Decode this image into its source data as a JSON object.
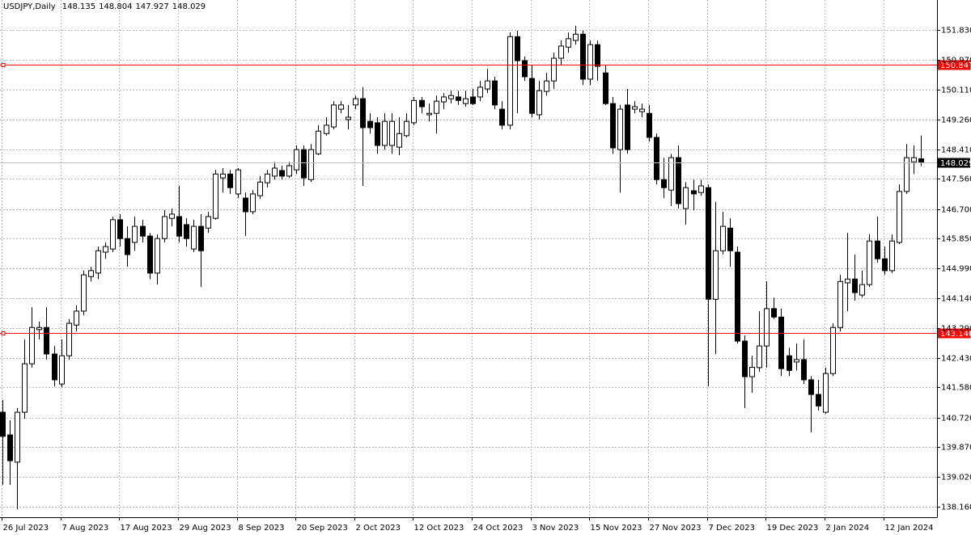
{
  "chart_data": {
    "type": "candlestick",
    "symbol": "USDJPY,Daily",
    "categories": [
      "26 Jul 2023",
      null,
      null,
      null,
      null,
      null,
      null,
      null,
      "7 Aug 2023",
      null,
      null,
      null,
      null,
      null,
      null,
      null,
      "17 Aug 2023",
      null,
      null,
      null,
      null,
      null,
      null,
      null,
      "29 Aug 2023",
      null,
      null,
      null,
      null,
      null,
      null,
      null,
      "8 Sep 2023",
      null,
      null,
      null,
      null,
      null,
      null,
      null,
      "20 Sep 2023",
      null,
      null,
      null,
      null,
      null,
      null,
      null,
      "2 Oct 2023",
      null,
      null,
      null,
      null,
      null,
      null,
      null,
      "12 Oct 2023",
      null,
      null,
      null,
      null,
      null,
      null,
      null,
      "24 Oct 2023",
      null,
      null,
      null,
      null,
      null,
      null,
      null,
      "3 Nov 2023",
      null,
      null,
      null,
      null,
      null,
      null,
      null,
      "15 Nov 2023",
      null,
      null,
      null,
      null,
      null,
      null,
      null,
      "27 Nov 2023",
      null,
      null,
      null,
      null,
      null,
      null,
      null,
      "7 Dec 2023",
      null,
      null,
      null,
      null,
      null,
      null,
      null,
      "19 Dec 2023",
      null,
      null,
      null,
      null,
      null,
      null,
      null,
      "2 Jan 2024",
      null,
      null,
      null,
      null,
      null,
      null,
      null,
      "12 Jan 2024",
      null,
      null,
      null,
      null,
      null
    ],
    "open": [
      140.87,
      140.22,
      139.44,
      140.87,
      142.26,
      143.24,
      143.3,
      142.54,
      141.68,
      142.49,
      143.37,
      143.77,
      144.76,
      144.86,
      145.46,
      145.55,
      146.39,
      145.85,
      145.74,
      146.2,
      145.92,
      144.86,
      145.85,
      146.43,
      146.48,
      146.25,
      145.55,
      146.2,
      146.15,
      146.43,
      147.59,
      147.7,
      147.13,
      147.01,
      146.62,
      147.08,
      147.45,
      147.64,
      147.8,
      147.64,
      147.82,
      148.4,
      147.54,
      148.28,
      148.86,
      149.05,
      149.56,
      149.26,
      149.68,
      149.86,
      149.21,
      149.17,
      148.52,
      148.52,
      148.47,
      148.8,
      149.17,
      149.81,
      149.4,
      149.44,
      149.77,
      149.86,
      149.91,
      149.72,
      149.91,
      149.91,
      150.14,
      150.37,
      149.56,
      149.1,
      151.64,
      150.95,
      150.44,
      149.4,
      150.07,
      150.37,
      151.02,
      151.34,
      151.53,
      151.71,
      150.42,
      151.41,
      150.6,
      149.72,
      148.4,
      149.68,
      149.56,
      149.49,
      149.44,
      148.75,
      147.54,
      147.24,
      148.17,
      146.71,
      147.22,
      147.17,
      147.31,
      144.11,
      145.5,
      146.15,
      145.46,
      142.91,
      141.89,
      142.15,
      142.77,
      143.84,
      143.6,
      142.49,
      142.31,
      142.38,
      141.8,
      141.38,
      140.87,
      141.98,
      143.3,
      144.58,
      144.69,
      144.23,
      144.53,
      145.78,
      145.27,
      144.93,
      145.74,
      147.2,
      148.05,
      148.135
    ],
    "high": [
      141.22,
      140.64,
      140.99,
      142.96,
      143.88,
      143.47,
      143.88,
      142.77,
      142.96,
      143.54,
      143.93,
      144.93,
      145.04,
      145.62,
      145.74,
      146.48,
      146.55,
      146.2,
      146.48,
      146.39,
      146.01,
      145.97,
      146.66,
      146.71,
      147.36,
      146.43,
      146.39,
      146.55,
      146.62,
      147.82,
      147.87,
      147.82,
      147.87,
      147.17,
      147.24,
      147.64,
      147.82,
      148.05,
      147.94,
      148.05,
      148.52,
      148.52,
      148.56,
      149.1,
      149.33,
      149.79,
      149.79,
      149.68,
      149.95,
      150.19,
      149.44,
      149.33,
      149.44,
      149.44,
      149.33,
      149.44,
      149.91,
      149.91,
      149.72,
      149.95,
      150.02,
      150.09,
      150.09,
      150.09,
      150.14,
      150.37,
      150.72,
      150.49,
      149.79,
      151.76,
      151.81,
      151.07,
      150.83,
      150.37,
      150.6,
      151.18,
      151.53,
      151.76,
      151.95,
      151.81,
      151.53,
      151.53,
      150.83,
      149.91,
      149.68,
      150.14,
      149.79,
      149.72,
      149.68,
      148.86,
      148.17,
      148.28,
      148.52,
      147.47,
      147.54,
      147.54,
      147.4,
      146.9,
      146.62,
      146.43,
      145.62,
      143.07,
      142.49,
      143.77,
      144.62,
      144.16,
      143.84,
      142.72,
      142.84,
      142.96,
      141.91,
      141.8,
      142.15,
      143.42,
      144.81,
      146.01,
      145.39,
      144.93,
      145.97,
      146.48,
      145.62,
      145.97,
      147.4,
      148.56,
      148.52,
      148.804
    ],
    "low": [
      138.79,
      138.79,
      138.09,
      140.69,
      142.15,
      142.96,
      142.38,
      141.61,
      141.59,
      142.38,
      143.19,
      143.65,
      144.62,
      144.69,
      145.27,
      145.46,
      145.62,
      145.04,
      145.5,
      145.74,
      144.69,
      144.53,
      145.74,
      146.2,
      145.74,
      145.62,
      145.46,
      144.46,
      146.01,
      146.39,
      147.17,
      147.13,
      147.01,
      145.92,
      146.55,
      146.99,
      147.31,
      147.54,
      147.54,
      147.59,
      147.7,
      147.36,
      147.47,
      148.24,
      148.8,
      148.98,
      149.44,
      148.98,
      149.56,
      147.36,
      148.86,
      148.28,
      148.4,
      148.28,
      148.24,
      148.75,
      149.1,
      149.44,
      149.21,
      148.86,
      149.56,
      149.72,
      149.68,
      149.63,
      149.68,
      149.79,
      150.02,
      149.56,
      148.98,
      148.98,
      149.44,
      150.37,
      149.33,
      149.26,
      149.95,
      150.14,
      150.83,
      151.18,
      151.41,
      150.25,
      150.25,
      150.37,
      149.68,
      148.28,
      147.17,
      148.28,
      149.44,
      149.33,
      148.63,
      147.4,
      147.01,
      146.78,
      146.71,
      146.25,
      146.66,
      147.08,
      141.61,
      142.54,
      145.39,
      145.04,
      142.84,
      140.99,
      141.43,
      142.03,
      142.15,
      143.54,
      141.91,
      141.91,
      142.07,
      141.68,
      140.29,
      140.92,
      140.82,
      141.91,
      143.19,
      143.77,
      144.07,
      144.16,
      144.46,
      145.16,
      144.81,
      144.86,
      145.69,
      147.13,
      147.7,
      147.927
    ],
    "close": [
      140.18,
      139.48,
      140.87,
      142.26,
      143.3,
      143.3,
      142.54,
      141.8,
      142.49,
      143.42,
      143.77,
      144.81,
      144.93,
      145.5,
      145.62,
      146.39,
      145.85,
      145.39,
      146.2,
      145.92,
      144.86,
      145.85,
      146.48,
      146.55,
      145.92,
      145.85,
      146.2,
      145.5,
      146.48,
      147.7,
      147.7,
      147.31,
      147.82,
      146.62,
      147.13,
      147.47,
      147.7,
      147.87,
      147.64,
      147.94,
      148.4,
      147.59,
      148.4,
      148.93,
      149.1,
      149.68,
      149.68,
      149.33,
      149.86,
      149.03,
      149.03,
      148.52,
      149.21,
      149.21,
      148.86,
      149.21,
      149.81,
      149.63,
      149.44,
      149.79,
      149.91,
      149.95,
      149.81,
      149.86,
      149.72,
      150.19,
      150.37,
      149.68,
      149.1,
      151.64,
      150.95,
      150.49,
      149.44,
      150.09,
      150.37,
      151.02,
      151.37,
      151.58,
      151.71,
      150.42,
      151.41,
      150.79,
      149.72,
      148.45,
      149.56,
      148.4,
      149.63,
      149.56,
      148.75,
      147.54,
      147.31,
      148.17,
      146.85,
      147.31,
      147.13,
      147.36,
      144.11,
      145.5,
      146.2,
      145.5,
      142.91,
      141.89,
      142.16,
      142.77,
      143.84,
      143.6,
      142.12,
      142.07,
      142.38,
      141.8,
      141.38,
      141.05,
      141.98,
      143.3,
      144.62,
      144.69,
      144.3,
      144.53,
      145.78,
      145.27,
      144.93,
      145.78,
      147.2,
      148.17,
      148.17,
      148.029
    ],
    "ylim": [
      137.86,
      152.69
    ],
    "yticks": [
      {
        "value": 151.83,
        "label": "151.830"
      },
      {
        "value": 150.97,
        "label": "150.970"
      },
      {
        "value": 150.11,
        "label": "150.110"
      },
      {
        "value": 149.26,
        "label": "149.260"
      },
      {
        "value": 148.41,
        "label": "148.410"
      },
      {
        "value": 147.56,
        "label": "147.560"
      },
      {
        "value": 146.7,
        "label": "146.700"
      },
      {
        "value": 145.85,
        "label": "145.850"
      },
      {
        "value": 144.99,
        "label": "144.990"
      },
      {
        "value": 144.14,
        "label": "144.140"
      },
      {
        "value": 143.29,
        "label": "143.290"
      },
      {
        "value": 142.43,
        "label": "142.430"
      },
      {
        "value": 141.58,
        "label": "141.580"
      },
      {
        "value": 140.72,
        "label": "140.720"
      },
      {
        "value": 139.87,
        "label": "139.870"
      },
      {
        "value": 139.02,
        "label": "139.020"
      },
      {
        "value": 138.16,
        "label": "138.160"
      }
    ],
    "hlines": [
      {
        "value": 150.847,
        "label": "150.847",
        "color": "#ff0000"
      },
      {
        "value": 143.14,
        "label": "143.140",
        "color": "#ff0000"
      }
    ],
    "last_price_color": "#c0c0c0",
    "up_color": "#ffffff",
    "down_color": "#000000",
    "edge_color": "#000000",
    "grid": true
  }
}
